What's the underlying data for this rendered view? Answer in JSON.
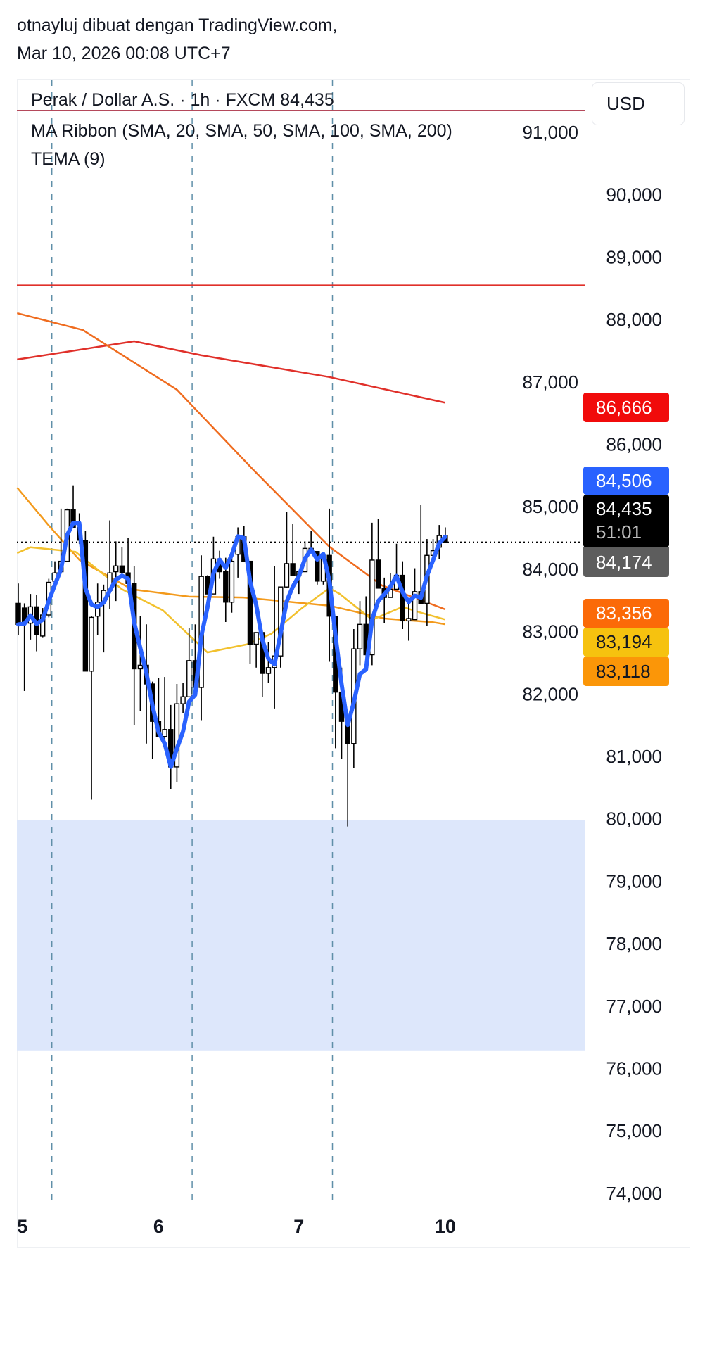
{
  "header": {
    "line1": "otnayluj dibuat dengan TradingView.com,",
    "line2": "Mar 10, 2026 00:08 UTC+7"
  },
  "legend": {
    "symbol": "Perak / Dollar A.S. · 1h · FXCM  84,435",
    "ma_ribbon": "MA Ribbon (SMA, 20, SMA, 50, SMA, 100, SMA, 200)",
    "tema": "TEMA (9)"
  },
  "currency_button": "USD",
  "price_labels": {
    "sma200": {
      "value": "86,666",
      "bg": "#f10b0b",
      "fg": "#ffffff"
    },
    "tema": {
      "value": "84,506",
      "bg": "#2962ff",
      "fg": "#ffffff"
    },
    "last": {
      "value": "84,435",
      "countdown": "51:01",
      "bg": "#000000",
      "fg": "#ffffff"
    },
    "prev": {
      "value": "84,174",
      "bg": "#5d5d5d",
      "fg": "#ffffff"
    },
    "sma100": {
      "value": "83,356",
      "bg": "#fb6a08",
      "fg": "#ffffff"
    },
    "sma20": {
      "value": "83,194",
      "bg": "#f6c20f",
      "fg": "#131722"
    },
    "sma50": {
      "value": "83,118",
      "bg": "#fb9608",
      "fg": "#131722"
    }
  },
  "chart_data": {
    "type": "candlestick",
    "symbol": "Perak / Dollar A.S.",
    "interval": "1h",
    "exchange": "FXCM",
    "last_price": 84435,
    "ylim": [
      74000,
      91000
    ],
    "y_ticks": [
      "91,000",
      "90,000",
      "89,000",
      "88,000",
      "87,000",
      "86,000",
      "85,000",
      "84,000",
      "83,000",
      "82,000",
      "81,000",
      "80,000",
      "79,000",
      "78,000",
      "77,000",
      "76,000",
      "75,000",
      "74,000"
    ],
    "x_ticks": [
      {
        "label": "5",
        "index": -0.2
      },
      {
        "label": "6",
        "index": 23
      },
      {
        "label": "7",
        "index": 46
      },
      {
        "label": "10",
        "index": 70
      }
    ],
    "session_breaks": [
      5.5,
      28.5,
      51.5
    ],
    "ohlc": [
      [
        83453,
        83771,
        82948,
        83116
      ],
      [
        83378,
        83453,
        82049,
        83135
      ],
      [
        83135,
        83603,
        82873,
        83397
      ],
      [
        83397,
        83584,
        82685,
        82948
      ],
      [
        82929,
        83378,
        82910,
        83266
      ],
      [
        83266,
        83846,
        83228,
        83790
      ],
      [
        83809,
        84127,
        83696,
        83940
      ],
      [
        83959,
        84970,
        83940,
        84127
      ],
      [
        84127,
        84970,
        84127,
        84951
      ],
      [
        84951,
        85344,
        84670,
        84670
      ],
      [
        84670,
        84895,
        84408,
        84464
      ],
      [
        84464,
        84614,
        82367,
        82367
      ],
      [
        82367,
        83247,
        80307,
        83228
      ],
      [
        83247,
        83771,
        82948,
        83472
      ],
      [
        83472,
        83753,
        82667,
        83659
      ],
      [
        83659,
        84782,
        83359,
        83940
      ],
      [
        83959,
        84445,
        83490,
        84052
      ],
      [
        84052,
        84352,
        83902,
        83940
      ],
      [
        83940,
        84502,
        83753,
        83771
      ],
      [
        83771,
        84052,
        81506,
        82404
      ],
      [
        82404,
        83247,
        81730,
        82461
      ],
      [
        82461,
        83116,
        81206,
        82161
      ],
      [
        82161,
        82199,
        80963,
        81562
      ],
      [
        81562,
        82255,
        81319,
        81319
      ],
      [
        81319,
        82273,
        81206,
        81431
      ],
      [
        81431,
        81824,
        80476,
        80832
      ],
      [
        80832,
        82161,
        80588,
        81843
      ],
      [
        81843,
        82180,
        81693,
        81955
      ],
      [
        81955,
        83060,
        81955,
        82535
      ],
      [
        82535,
        83116,
        82105,
        82105
      ],
      [
        82105,
        84221,
        81581,
        83884
      ],
      [
        83884,
        83902,
        83603,
        83603
      ],
      [
        83603,
        84520,
        83603,
        84165
      ],
      [
        84165,
        84296,
        83846,
        83959
      ],
      [
        83959,
        84183,
        83153,
        83472
      ],
      [
        83472,
        84239,
        83303,
        84127
      ],
      [
        84239,
        84670,
        83865,
        84520
      ],
      [
        84520,
        84689,
        84127,
        84127
      ],
      [
        84127,
        84127,
        82479,
        82798
      ],
      [
        82798,
        82985,
        82423,
        82985
      ],
      [
        82985,
        82985,
        81955,
        82330
      ],
      [
        82330,
        82835,
        82180,
        82423
      ],
      [
        82423,
        84052,
        81768,
        82610
      ],
      [
        82610,
        83715,
        82423,
        83715
      ],
      [
        83715,
        84914,
        83696,
        84090
      ],
      [
        84090,
        84726,
        83902,
        83902
      ],
      [
        83902,
        83959,
        83603,
        83959
      ],
      [
        83959,
        84445,
        83959,
        84333
      ],
      [
        84333,
        84614,
        84284,
        84284
      ],
      [
        84284,
        84284,
        83753,
        83809
      ],
      [
        83809,
        84277,
        83753,
        84221
      ],
      [
        84221,
        84970,
        82517,
        83247
      ],
      [
        83247,
        83247,
        81131,
        82030
      ],
      [
        82030,
        82423,
        80963,
        81562
      ],
      [
        81562,
        81562,
        79877,
        81206
      ],
      [
        81206,
        83041,
        80813,
        82723
      ],
      [
        82723,
        83490,
        82461,
        83116
      ],
      [
        83116,
        83565,
        82479,
        82629
      ],
      [
        82629,
        84745,
        82461,
        84146
      ],
      [
        84146,
        84801,
        83696,
        83696
      ],
      [
        83696,
        83865,
        83135,
        83547
      ],
      [
        83547,
        83940,
        83547,
        83678
      ],
      [
        83678,
        84408,
        83678,
        83902
      ],
      [
        83902,
        84127,
        83041,
        83172
      ],
      [
        83172,
        83528,
        82854,
        83210
      ],
      [
        83191,
        84015,
        83191,
        83640
      ],
      [
        83640,
        85026,
        83453,
        83453
      ],
      [
        83453,
        84483,
        83097,
        84221
      ],
      [
        84221,
        84483,
        84221,
        84296
      ],
      [
        84352,
        84708,
        84165,
        84539
      ],
      [
        84539,
        84670,
        84483,
        84435
      ]
    ],
    "series": [
      {
        "name": "SMA 200",
        "color": "#e0302a",
        "points": [
          [
            -0.2,
            87360
          ],
          [
            19,
            87652
          ],
          [
            30,
            87427
          ],
          [
            51,
            87079
          ],
          [
            70,
            86666
          ]
        ]
      },
      {
        "name": "SMA 100",
        "color": "#ef6c1f",
        "points": [
          [
            -0.2,
            88101
          ],
          [
            10.6,
            87831
          ],
          [
            26,
            86876
          ],
          [
            38.6,
            85584
          ],
          [
            51,
            84360
          ],
          [
            59.6,
            83741
          ],
          [
            70,
            83356
          ]
        ]
      },
      {
        "name": "SMA 50",
        "color": "#f39a1c",
        "points": [
          [
            -0.2,
            85307
          ],
          [
            5,
            84700
          ],
          [
            10,
            84150
          ],
          [
            18.6,
            83678
          ],
          [
            28,
            83560
          ],
          [
            36.9,
            83547
          ],
          [
            51,
            83416
          ],
          [
            60,
            83210
          ],
          [
            68,
            83150
          ],
          [
            70,
            83118
          ]
        ]
      },
      {
        "name": "SMA 20",
        "color": "#f2c12e",
        "points": [
          [
            -0.2,
            84258
          ],
          [
            2,
            84352
          ],
          [
            9.4,
            84277
          ],
          [
            17,
            83678
          ],
          [
            23.7,
            83340
          ],
          [
            31,
            82667
          ],
          [
            37.6,
            82798
          ],
          [
            41.5,
            82966
          ],
          [
            46.5,
            83378
          ],
          [
            51,
            83696
          ],
          [
            52.7,
            83603
          ],
          [
            58,
            83191
          ],
          [
            63,
            83397
          ],
          [
            66,
            83303
          ],
          [
            70,
            83194
          ]
        ]
      }
    ],
    "tema": {
      "name": "TEMA (9)",
      "period": 9,
      "color": "#2962ff"
    },
    "horizontal_lines": [
      {
        "price": 91350,
        "color": "#b5495b"
      },
      {
        "price": 88550,
        "color": "#e0302a"
      }
    ],
    "zone": {
      "from": 76290,
      "to": 79980,
      "color": "#dde7fb"
    },
    "candle_colors": {
      "up_body": "#ffffff",
      "down_body": "#000000",
      "border": "#000000"
    }
  }
}
